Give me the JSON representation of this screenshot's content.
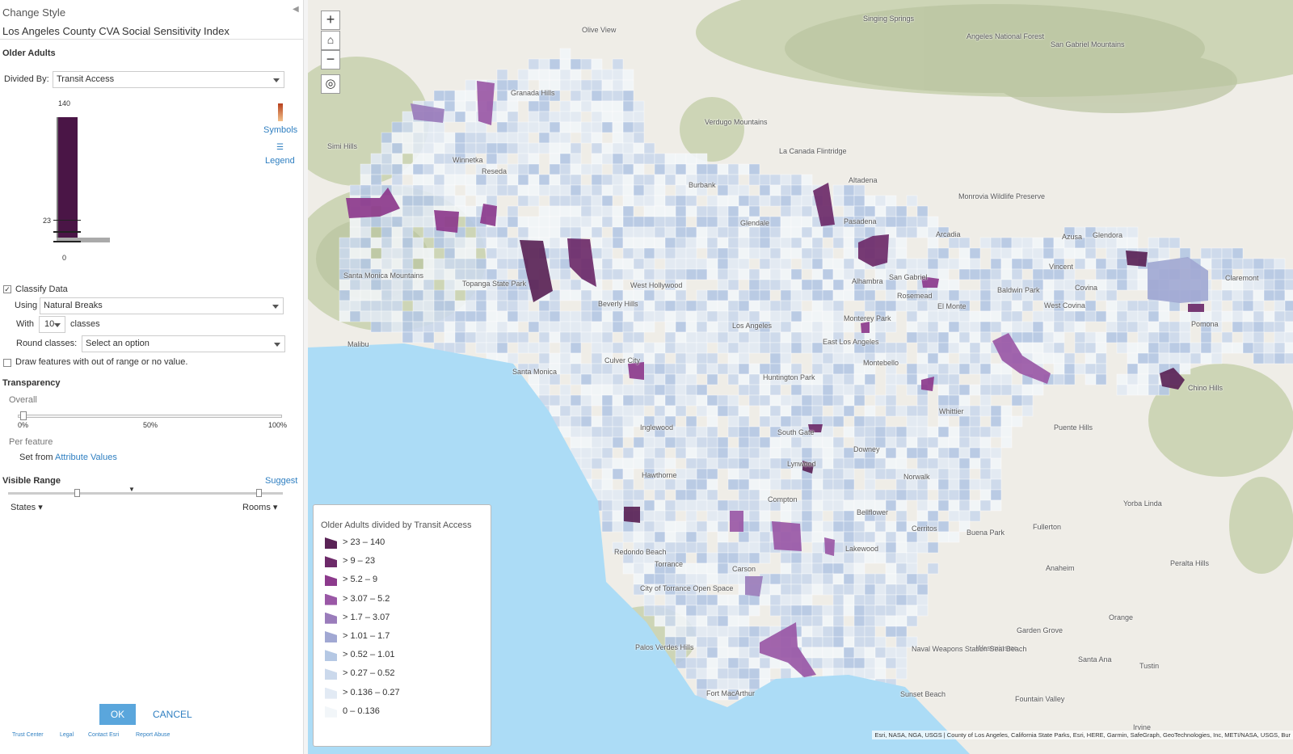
{
  "panel": {
    "title": "Change Style",
    "layer": "Los Angeles County CVA Social Sensitivity Index",
    "field": "Older Adults",
    "divided_by_label": "Divided By:",
    "divided_by": "Transit Access",
    "histogram": {
      "max_label": "140",
      "break_label": "23",
      "min_label": "0"
    },
    "symbols": "Symbols",
    "legend": "Legend",
    "classify": "Classify Data",
    "using_label": "Using",
    "using": "Natural Breaks",
    "with_label": "With",
    "classes_count": "10",
    "classes_label": "classes",
    "round_label": "Round classes:",
    "round": "Select an option",
    "draw_out_of_range": "Draw features with out of range or no value.",
    "transparency": "Transparency",
    "overall": "Overall",
    "transparency_ticks": [
      "0%",
      "50%",
      "100%"
    ],
    "per_feature": "Per feature",
    "set_from": "Set from",
    "attribute_values": "Attribute Values",
    "visible_range": "Visible Range",
    "suggest": "Suggest",
    "range_min": "States",
    "range_max": "Rooms",
    "ok": "OK",
    "cancel": "CANCEL",
    "footer": [
      "Trust Center",
      "Legal",
      "Contact Esri",
      "Report Abuse"
    ]
  },
  "map": {
    "zoom_in": "+",
    "zoom_out": "−",
    "legend": {
      "title": "Older Adults divided by Transit Access",
      "items": [
        {
          "label": "> 23 – 140",
          "color": "#5a2356"
        },
        {
          "label": "> 9 – 23",
          "color": "#6d2a69"
        },
        {
          "label": "> 5.2 – 9",
          "color": "#8c3a8c"
        },
        {
          "label": "> 3.07 – 5.2",
          "color": "#9a58a6"
        },
        {
          "label": "> 1.7 – 3.07",
          "color": "#9a7cbb"
        },
        {
          "label": "> 1.01 – 1.7",
          "color": "#a1a8d3"
        },
        {
          "label": "> 0.52 – 1.01",
          "color": "#b5c8e4"
        },
        {
          "label": "> 0.27 – 0.52",
          "color": "#cbd9ec"
        },
        {
          "label": "> 0.136 – 0.27",
          "color": "#e2eaf4"
        },
        {
          "label": "0 – 0.136",
          "color": "#f2f6f9"
        }
      ]
    },
    "places": [
      "Olive View",
      "Granada Hills",
      "Simi Hills",
      "Winnetka",
      "Reseda",
      "Santa Monica Mountains",
      "Topanga State Park",
      "Santa Monica",
      "Malibu",
      "Culver City",
      "Beverly Hills",
      "West Hollywood",
      "Los Angeles",
      "Burbank",
      "Glendale",
      "Verdugo Mountains",
      "La Canada Flintridge",
      "Altadena",
      "Pasadena",
      "Arcadia",
      "Monrovia Wildlife Preserve",
      "Azusa",
      "Glendora",
      "Vincent",
      "San Gabriel",
      "Alhambra",
      "Baldwin Park",
      "Covina",
      "Claremont",
      "Rosemead",
      "El Monte",
      "West Covina",
      "Pomona",
      "Monterey Park",
      "East Los Angeles",
      "Montebello",
      "Chino Hills",
      "Whittier",
      "Huntington Park",
      "South Gate",
      "Downey",
      "Inglewood",
      "Hawthorne",
      "Lynwood",
      "Norwalk",
      "Bellflower",
      "Compton",
      "Cerritos",
      "Buena Park",
      "Fullerton",
      "Yorba Linda",
      "Lakewood",
      "Anaheim",
      "Redondo Beach",
      "Torrance",
      "Carson",
      "City of Torrance Open Space",
      "Garden Grove",
      "Orange",
      "Palos Verdes Hills",
      "Westminster",
      "Santa Ana",
      "Tustin",
      "Fort MacArthur",
      "Sunset Beach",
      "Fountain Valley",
      "Irvine",
      "Naval Weapons Station Seal Beach",
      "Angeles National Forest",
      "San Gabriel Mountains",
      "Singing Springs",
      "Puente Hills",
      "Peralta Hills"
    ],
    "attribution": "Esri, NASA, NGA, USGS | County of Los Angeles, California State Parks, Esri, HERE, Garmin, SafeGraph, GeoTechnologies, Inc, METI/NASA, USGS, Bur"
  }
}
